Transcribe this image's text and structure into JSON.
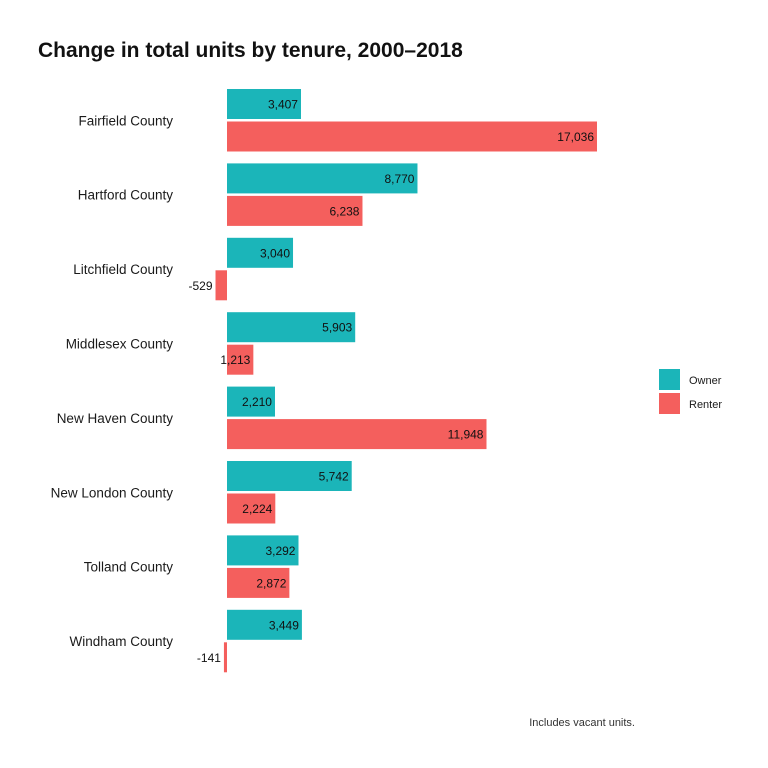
{
  "chart_data": {
    "type": "bar",
    "orientation": "horizontal",
    "title": "Change in total units by tenure, 2000–2018",
    "caption": "Includes vacant units.",
    "xlabel": "",
    "ylabel": "",
    "grid": false,
    "legend_position": "right",
    "categories": [
      "Fairfield County",
      "Hartford County",
      "Litchfield County",
      "Middlesex County",
      "New Haven County",
      "New London County",
      "Tolland County",
      "Windham County"
    ],
    "series": [
      {
        "name": "Owner",
        "color": "#1bb5b9",
        "values": [
          3407,
          8770,
          3040,
          5903,
          2210,
          5742,
          3292,
          3449
        ],
        "labels": [
          "3,407",
          "8,770",
          "3,040",
          "5,903",
          "2,210",
          "5,742",
          "3,292",
          "3,449"
        ]
      },
      {
        "name": "Renter",
        "color": "#f45f5d",
        "values": [
          17036,
          6238,
          -529,
          1213,
          11948,
          2224,
          2872,
          -141
        ],
        "labels": [
          "17,036",
          "6,238",
          "-529",
          "1,213",
          "11,948",
          "2,224",
          "2,872",
          "-141"
        ]
      }
    ],
    "xlim": [
      -529,
      17036
    ]
  }
}
